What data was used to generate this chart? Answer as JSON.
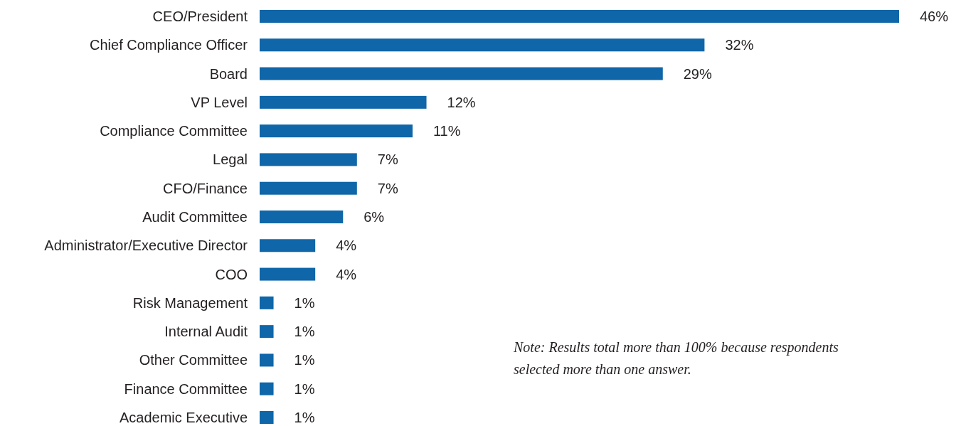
{
  "chart_data": {
    "type": "bar",
    "orientation": "horizontal",
    "categories": [
      "CEO/President",
      "Chief Compliance Officer",
      "Board",
      "VP Level",
      "Compliance Committee",
      "Legal",
      "CFO/Finance",
      "Audit Committee",
      "Administrator/Executive Director",
      "COO",
      "Risk Management",
      "Internal Audit",
      "Other Committee",
      "Finance Committee",
      "Academic Executive"
    ],
    "values": [
      46,
      32,
      29,
      12,
      11,
      7,
      7,
      6,
      4,
      4,
      1,
      1,
      1,
      1,
      1
    ],
    "value_labels": [
      "46%",
      "32%",
      "29%",
      "12%",
      "11%",
      "7%",
      "7%",
      "6%",
      "4%",
      "4%",
      "1%",
      "1%",
      "1%",
      "1%",
      "1%"
    ],
    "color": "#0f66a8",
    "annotations": [
      "Note: Results total more than 100% because respondents selected more than one answer."
    ]
  }
}
